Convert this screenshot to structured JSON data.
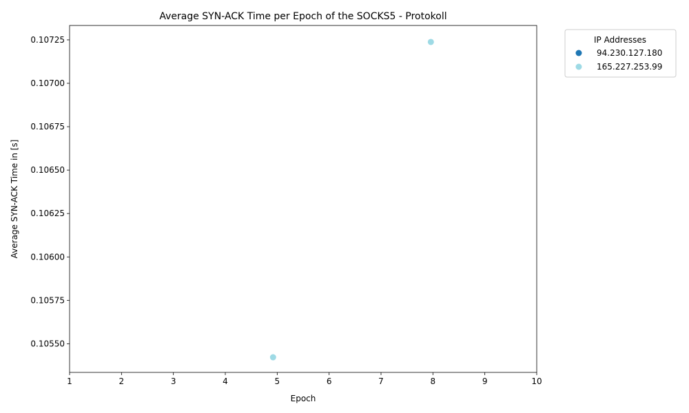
{
  "chart_data": {
    "type": "scatter",
    "title": "Average SYN-ACK Time per Epoch of the SOCKS5 - Protokoll",
    "xlabel": "Epoch",
    "ylabel": "Average SYN-ACK Time in [s]",
    "xlim": [
      1,
      10
    ],
    "ylim": [
      0.105335,
      0.107333
    ],
    "x_ticks": [
      "1",
      "2",
      "3",
      "4",
      "5",
      "6",
      "7",
      "8",
      "9",
      "10"
    ],
    "y_ticks": [
      "0.10550",
      "0.10575",
      "0.10600",
      "0.10625",
      "0.10650",
      "0.10675",
      "0.10700",
      "0.10725"
    ],
    "grid": false,
    "legend": {
      "title": "IP Addresses",
      "placement": "outside-top-right"
    },
    "series": [
      {
        "name": "94.230.127.180",
        "color": "#1f77b4",
        "points": []
      },
      {
        "name": "165.227.253.99",
        "color": "#9edae5",
        "points": [
          {
            "x": 4.92,
            "y": 0.105422
          },
          {
            "x": 7.96,
            "y": 0.107238
          }
        ]
      }
    ]
  }
}
